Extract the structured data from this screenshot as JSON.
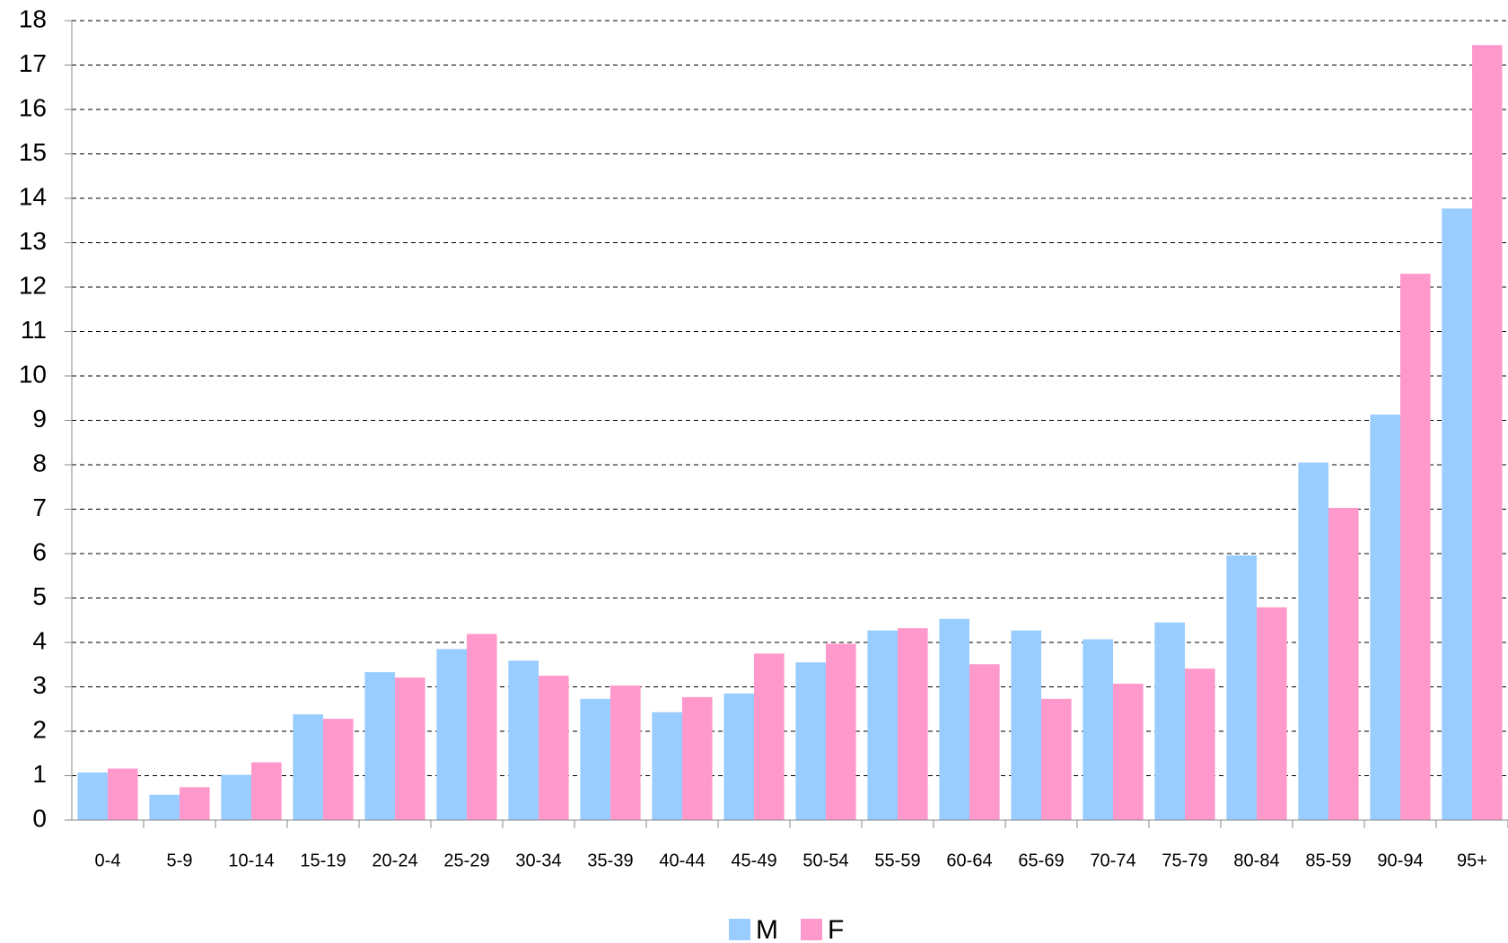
{
  "chart_data": {
    "type": "bar",
    "categories": [
      "0-4",
      "5-9",
      "10-14",
      "15-19",
      "20-24",
      "25-29",
      "30-34",
      "35-39",
      "40-44",
      "45-49",
      "50-54",
      "55-59",
      "60-64",
      "65-69",
      "70-74",
      "75-79",
      "80-84",
      "85-59",
      "90-94",
      "95+"
    ],
    "series": [
      {
        "name": "M",
        "color": "#99ccff",
        "values": [
          1.07,
          0.57,
          1.02,
          2.38,
          3.33,
          3.85,
          3.59,
          2.73,
          2.43,
          2.85,
          3.55,
          4.27,
          4.53,
          4.27,
          4.07,
          4.45,
          5.96,
          8.05,
          9.13,
          13.77
        ]
      },
      {
        "name": "F",
        "color": "#ff99cc",
        "values": [
          1.16,
          0.74,
          1.3,
          2.28,
          3.21,
          4.19,
          3.25,
          3.03,
          2.77,
          3.75,
          3.97,
          4.32,
          3.51,
          2.73,
          3.07,
          3.41,
          4.79,
          7.03,
          12.3,
          17.45
        ]
      }
    ],
    "ylim": [
      0,
      18
    ],
    "yticks": [
      0,
      1,
      2,
      3,
      4,
      5,
      6,
      7,
      8,
      9,
      10,
      11,
      12,
      13,
      14,
      15,
      16,
      17,
      18
    ],
    "grid": true,
    "legend": "bottom"
  }
}
